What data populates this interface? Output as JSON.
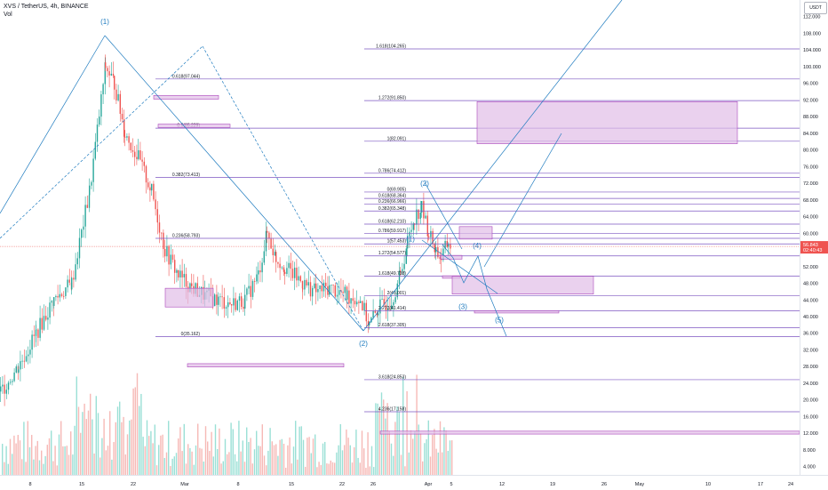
{
  "legend": {
    "symbol": "XVS / TetherUS, 4h, BINANCE",
    "volume_label": "Vol"
  },
  "axis": {
    "currency": "USDT",
    "price_ticks": [
      "4.000",
      "8.000",
      "12.000",
      "16.000",
      "20.000",
      "24.000",
      "28.000",
      "32.000",
      "36.000",
      "40.000",
      "44.000",
      "48.000",
      "52.000",
      "56.000",
      "60.000",
      "64.000",
      "68.000",
      "72.000",
      "76.000",
      "80.000",
      "84.000",
      "88.000",
      "92.000",
      "96.000",
      "100.000",
      "104.000",
      "108.000",
      "112.000"
    ],
    "current_price": "56.843",
    "countdown": "02:40:43",
    "time_ticks": [
      "8",
      "15",
      "22",
      "Mar",
      "8",
      "15",
      "22",
      "26",
      "Apr",
      "5",
      "12",
      "19",
      "26",
      "May",
      "10",
      "17",
      "24"
    ]
  },
  "colors": {
    "up": "#26a69a",
    "down": "#ef5350",
    "fib_line": "#7e57c2",
    "zone_fill": "#e1bee7",
    "zone_stroke": "#ab47bc",
    "wave_line": "#1e7bbf",
    "current_price": "#ef5350"
  },
  "fib_levels": [
    {
      "label": "0.618(97.044)",
      "price": 97.044,
      "x1": 175,
      "x2": 900
    },
    {
      "label": "0.5(85.229)",
      "price": 85.229,
      "x1": 175,
      "x2": 900
    },
    {
      "label": "0.382(73.413)",
      "price": 73.413,
      "x1": 175,
      "x2": 900
    },
    {
      "label": "0.236(58.793)",
      "price": 58.793,
      "x1": 175,
      "x2": 900
    },
    {
      "label": "0(35.162)",
      "price": 35.162,
      "x1": 175,
      "x2": 900
    },
    {
      "label": "1.618(104.265)",
      "price": 104.265,
      "x1": 410,
      "x2": 900
    },
    {
      "label": "1.272(91.850)",
      "price": 91.85,
      "x1": 410,
      "x2": 900
    },
    {
      "label": "1(82.091)",
      "price": 82.091,
      "x1": 410,
      "x2": 900
    },
    {
      "label": "0.786(74.412)",
      "price": 74.412,
      "x1": 410,
      "x2": 900
    },
    {
      "label": "0(69.905)",
      "price": 69.905,
      "x1": 410,
      "x2": 900
    },
    {
      "label": "0.618(68.364)",
      "price": 68.364,
      "x1": 410,
      "x2": 900
    },
    {
      "label": "0.236(66.966)",
      "price": 66.966,
      "x1": 410,
      "x2": 900
    },
    {
      "label": "0.382(65.348)",
      "price": 65.348,
      "x1": 410,
      "x2": 900
    },
    {
      "label": "0.618(62.210)",
      "price": 62.21,
      "x1": 410,
      "x2": 900
    },
    {
      "label": "0.786(59.917)",
      "price": 59.917,
      "x1": 410,
      "x2": 900
    },
    {
      "label": "1(57.453)",
      "price": 57.453,
      "x1": 410,
      "x2": 900
    },
    {
      "label": "1.272(54.577)",
      "price": 54.577,
      "x1": 410,
      "x2": 900
    },
    {
      "label": "1.618(49.738)",
      "price": 49.738,
      "x1": 410,
      "x2": 900
    },
    {
      "label": "2(45.001)",
      "price": 45.001,
      "x1": 410,
      "x2": 900
    },
    {
      "label": "2.272(41.414)",
      "price": 41.414,
      "x1": 410,
      "x2": 900
    },
    {
      "label": "2.618(37.305)",
      "price": 37.305,
      "x1": 410,
      "x2": 900
    },
    {
      "label": "3.618(24.853)",
      "price": 24.853,
      "x1": 410,
      "x2": 900
    },
    {
      "label": "4.236(17.158)",
      "price": 17.158,
      "x1": 410,
      "x2": 900
    }
  ],
  "zones": [
    {
      "x": 173,
      "p1": 93.1,
      "p2": 92.2,
      "w": 73
    },
    {
      "x": 178,
      "p1": 86.2,
      "p2": 85.4,
      "w": 81
    },
    {
      "x": 537,
      "p1": 91.6,
      "p2": 81.5,
      "w": 293
    },
    {
      "x": 186,
      "p1": 46.8,
      "p2": 42.3,
      "w": 54
    },
    {
      "x": 517,
      "p1": 61.6,
      "p2": 58.6,
      "w": 37
    },
    {
      "x": 496,
      "p1": 54.7,
      "p2": 53.8,
      "w": 24
    },
    {
      "x": 498,
      "p1": 49.8,
      "p2": 49.2,
      "w": 20
    },
    {
      "x": 509,
      "p1": 49.7,
      "p2": 45.4,
      "w": 159
    },
    {
      "x": 534,
      "p1": 41.4,
      "p2": 40.9,
      "w": 95
    },
    {
      "x": 211,
      "p1": 28.7,
      "p2": 27.9,
      "w": 176
    },
    {
      "x": 428,
      "p1": 12.5,
      "p2": 11.8,
      "w": 472
    }
  ],
  "waves": [
    {
      "label": "(1)",
      "x": 118,
      "price": 110.2
    },
    {
      "label": "(2)",
      "x": 409,
      "price": 33.0
    },
    {
      "label": "(1)",
      "x": 462,
      "price": 58.0
    },
    {
      "label": "(2)",
      "x": 478,
      "price": 71.4
    },
    {
      "label": "(3)",
      "x": 521,
      "price": 41.8
    },
    {
      "label": "(4)",
      "x": 537,
      "price": 56.4
    },
    {
      "label": "(5)",
      "x": 562,
      "price": 38.6
    }
  ],
  "price_scale": {
    "min": 2.0,
    "max": 116.0
  }
}
